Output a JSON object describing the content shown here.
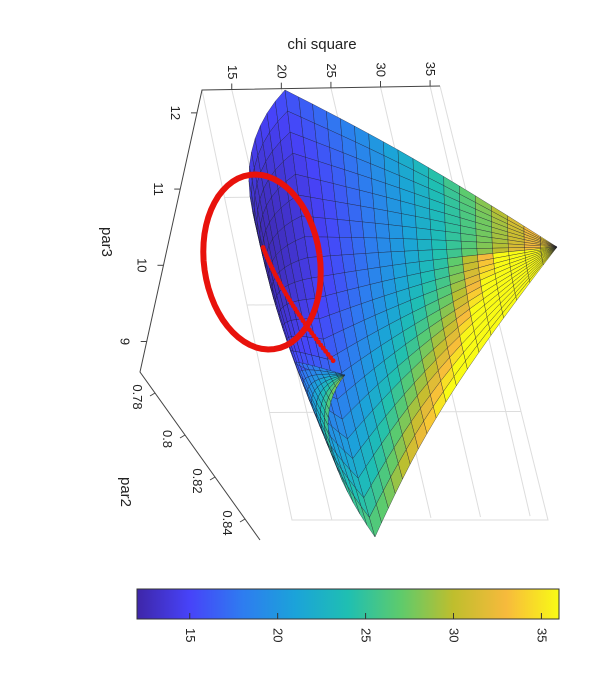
{
  "chart_data": {
    "type": "surface",
    "z_axis": {
      "label": "chi square",
      "ticks": [
        "15",
        "20",
        "25",
        "30",
        "35"
      ],
      "range": [
        12,
        36
      ]
    },
    "par3_axis": {
      "label": "par3",
      "ticks": [
        "12",
        "11",
        "10",
        "9"
      ],
      "range": [
        8.6,
        12.3
      ]
    },
    "par2_axis": {
      "label": "par2",
      "ticks": [
        "0.78",
        "0.8",
        "0.82",
        "0.84"
      ],
      "range": [
        0.77,
        0.85
      ]
    },
    "colorbar": {
      "ticks": [
        "15",
        "20",
        "25",
        "30",
        "35"
      ],
      "range": [
        12,
        36
      ]
    },
    "grid": true,
    "colormap": [
      "#3e26a8",
      "#4743f9",
      "#2e7cf0",
      "#1ba3d9",
      "#1fbfb2",
      "#5ecb6c",
      "#bfbe2d",
      "#f7ba3c",
      "#f9fb15"
    ],
    "contour_color": "#e8120c"
  }
}
